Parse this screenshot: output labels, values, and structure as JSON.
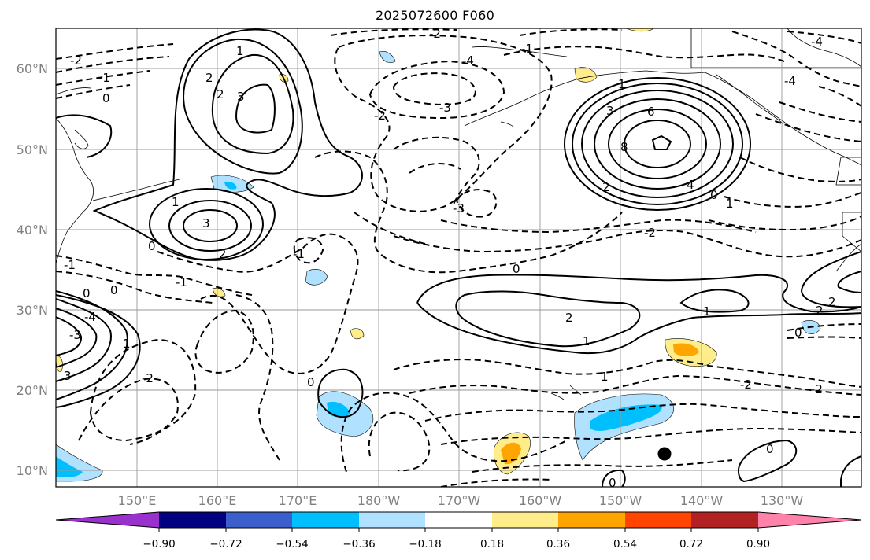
{
  "title": "2025072600 F060",
  "map": {
    "lat_labels": [
      "60°N",
      "50°N",
      "40°N",
      "30°N",
      "20°N",
      "10°N"
    ],
    "lon_labels": [
      "150°E",
      "160°E",
      "170°E",
      "180°W",
      "170°W",
      "160°W",
      "150°W",
      "140°W",
      "130°W"
    ],
    "contour_labels": [
      "-2",
      "-1",
      "0",
      "-2",
      "-1",
      "2",
      "1",
      "-2",
      "-4",
      "-3",
      "-4",
      "3",
      "1",
      "-4",
      "2",
      "3",
      "6",
      "8",
      "4",
      "2",
      "0",
      "1",
      "1",
      "2",
      "3",
      "0",
      "-2",
      "-1",
      "0",
      "-1",
      "-3",
      "-1",
      "0",
      "2",
      "1",
      "1",
      "2",
      "2",
      "-4",
      "3",
      "-3",
      "1",
      "0",
      "1",
      "-2",
      "-2",
      "0",
      "-2",
      "0",
      "0",
      "0"
    ]
  },
  "colorbar": {
    "colors": [
      "#9932cc",
      "#000080",
      "#3a5fcd",
      "#00bfff",
      "#b0e2ff",
      "#ffffff",
      "#ffec8b",
      "#ffa500",
      "#ff4500",
      "#b22222",
      "#ff82ab"
    ],
    "tick_labels": [
      "−0.90",
      "−0.72",
      "−0.54",
      "−0.36",
      "−0.18",
      "0.18",
      "0.36",
      "0.54",
      "0.72",
      "0.90"
    ]
  },
  "marker": {
    "name": "storm-marker"
  }
}
